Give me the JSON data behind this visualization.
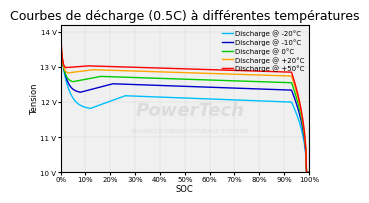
{
  "title": "Courbes de décharge (0.5C) à différentes températures",
  "xlabel": "SOC",
  "ylabel": "Tension",
  "ylim": [
    10,
    14.2
  ],
  "yticks": [
    10,
    11,
    12,
    13,
    14
  ],
  "ytick_labels": [
    "10 V",
    "11 V",
    "12 V",
    "13 V",
    "14 V"
  ],
  "xticks": [
    0,
    10,
    20,
    30,
    40,
    50,
    60,
    70,
    80,
    90,
    100
  ],
  "xtick_labels": [
    "0%",
    "10%",
    "20%",
    "30%",
    "40%",
    "50%",
    "60%",
    "70%",
    "80%",
    "90%",
    "100%"
  ],
  "background_color": "#ffffff",
  "plot_bg_color": "#f0f0f0",
  "series": [
    {
      "label": "Discharge @ -20°C",
      "color": "#00bfff",
      "v_start": 13.5,
      "v_flat": 12.18,
      "v_dip": 11.82,
      "dip_soc": 88,
      "flat_soc": 74,
      "end_soc": 1,
      "v_end": 10.0
    },
    {
      "label": "Discharge @ -10°C",
      "color": "#0000cd",
      "v_start": 13.6,
      "v_flat": 12.52,
      "v_dip": 12.28,
      "dip_soc": 92,
      "flat_soc": 79,
      "end_soc": 1,
      "v_end": 10.0
    },
    {
      "label": "Discharge @ 0°C",
      "color": "#00cc00",
      "v_start": 13.7,
      "v_flat": 12.73,
      "v_dip": 12.58,
      "dip_soc": 95,
      "flat_soc": 84,
      "end_soc": 1,
      "v_end": 10.0
    },
    {
      "label": "Discharge @ +20°C",
      "color": "#ffa500",
      "v_start": 13.8,
      "v_flat": 12.92,
      "v_dip": 12.83,
      "dip_soc": 97,
      "flat_soc": 87,
      "end_soc": 1,
      "v_end": 10.0
    },
    {
      "label": "Discharge @ +50°C",
      "color": "#ff0000",
      "v_start": 14.2,
      "v_flat": 13.03,
      "v_dip": 12.98,
      "dip_soc": 98,
      "flat_soc": 89,
      "end_soc": 1,
      "v_end": 10.0
    }
  ],
  "watermark_text1": "PowerTech",
  "watermark_text2": "ADVANCED ENERGY STORAGE SYSTEMS",
  "title_fontsize": 9,
  "axis_fontsize": 6,
  "tick_fontsize": 5,
  "legend_fontsize": 5
}
